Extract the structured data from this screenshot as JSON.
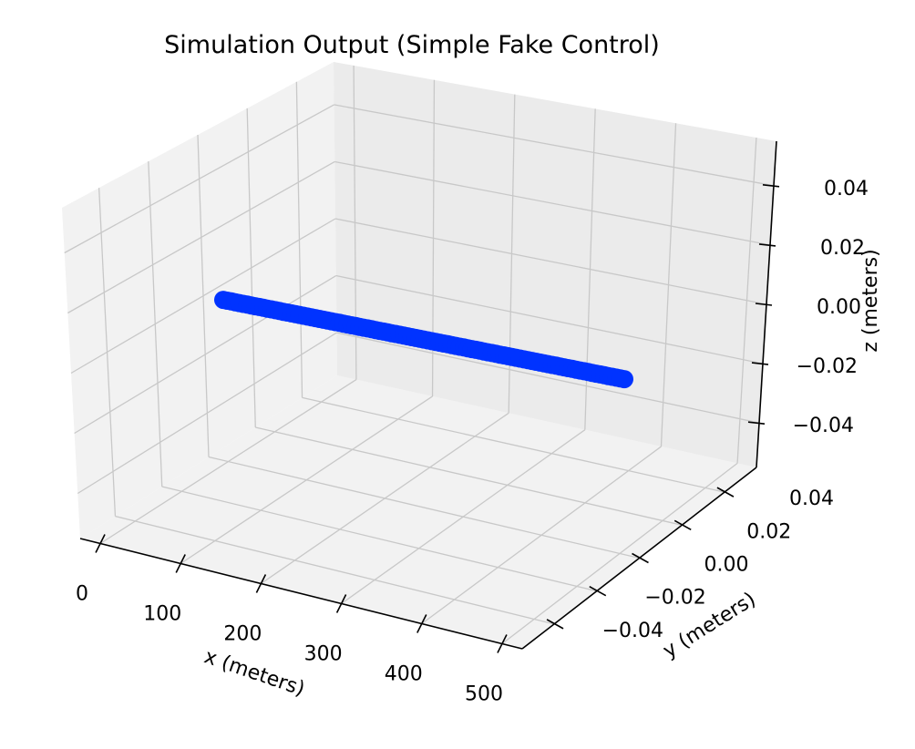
{
  "chart_data": {
    "type": "scatter",
    "projection": "3d",
    "title": "Simulation Output (Simple Fake Control)",
    "xlabel": "x (meters)",
    "ylabel": "y (meters)",
    "zlabel": "z (meters)",
    "xlim": [
      -25,
      525
    ],
    "ylim": [
      -0.055,
      0.055
    ],
    "zlim": [
      -0.055,
      0.055
    ],
    "xticks": [
      0,
      100,
      200,
      300,
      400,
      500
    ],
    "xtick_labels": [
      "0",
      "100",
      "200",
      "300",
      "400",
      "500"
    ],
    "yticks": [
      -0.04,
      -0.02,
      0.0,
      0.02,
      0.04
    ],
    "ytick_labels": [
      "−0.04",
      "−0.02",
      "0.00",
      "0.02",
      "0.04"
    ],
    "zticks": [
      -0.04,
      -0.02,
      0.0,
      0.02,
      0.04
    ],
    "ztick_labels": [
      "−0.04",
      "−0.02",
      "0.00",
      "0.02",
      "0.04"
    ],
    "grid": true,
    "marker_color": "#0033ff",
    "points": {
      "x_start": 0,
      "x_end": 500,
      "x_step": 5,
      "y": 0,
      "z": 0
    }
  }
}
